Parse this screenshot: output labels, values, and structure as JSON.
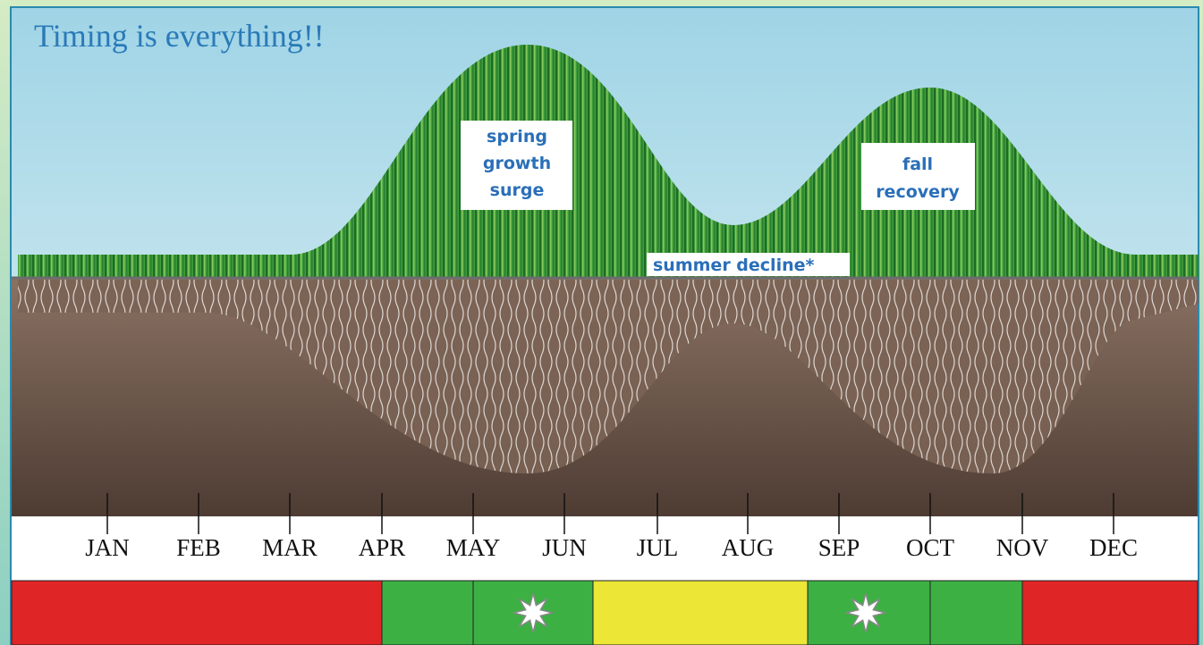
{
  "title": "Timing is everything!!",
  "annotations": {
    "spring": [
      "spring",
      "growth",
      "surge"
    ],
    "fall": [
      "fall",
      "recovery"
    ],
    "summer": "summer decline*"
  },
  "months": [
    "JAN",
    "FEB",
    "MAR",
    "APR",
    "MAY",
    "JUN",
    "JUL",
    "AUG",
    "SEP",
    "OCT",
    "NOV",
    "DEC"
  ]
}
